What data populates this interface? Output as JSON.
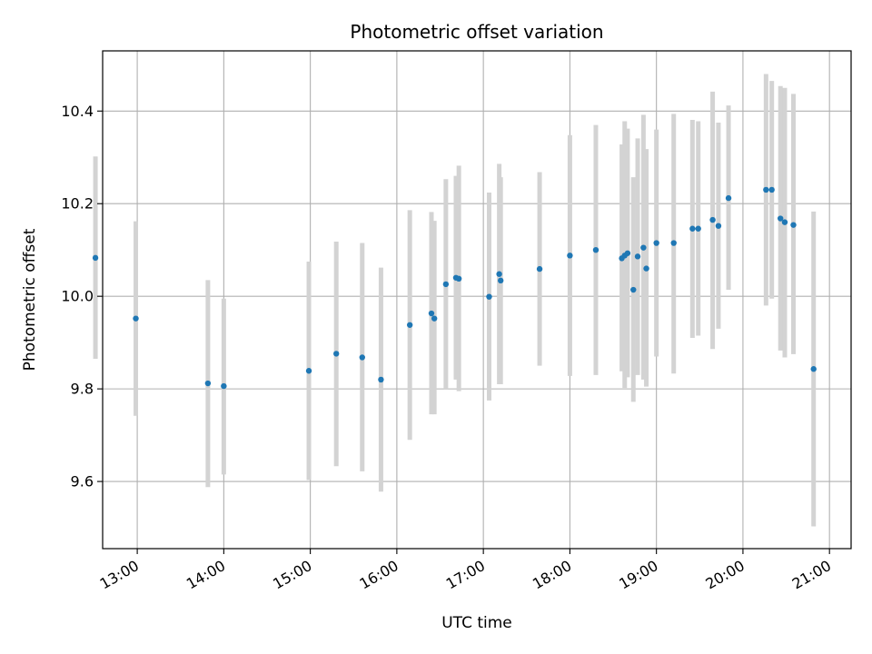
{
  "chart_data": {
    "type": "scatter",
    "title": "Photometric offset variation",
    "xlabel": "UTC time",
    "ylabel": "Photometric offset",
    "x_ticks": [
      "13:00",
      "14:00",
      "15:00",
      "16:00",
      "17:00",
      "18:00",
      "19:00",
      "20:00",
      "21:00"
    ],
    "y_ticks": [
      9.6,
      9.8,
      10.0,
      10.2,
      10.4
    ],
    "xlim": [
      "12:36",
      "21:15"
    ],
    "ylim": [
      9.455,
      10.53
    ],
    "grid": true,
    "colors": {
      "point": "#1f77b4",
      "errorbar": "#d3d3d3",
      "grid": "#b0b0b0"
    },
    "points": [
      {
        "t": "12:31",
        "y": 10.083,
        "lo": 9.865,
        "hi": 10.302
      },
      {
        "t": "12:59",
        "y": 9.952,
        "lo": 9.742,
        "hi": 10.162
      },
      {
        "t": "13:49",
        "y": 9.812,
        "lo": 9.588,
        "hi": 10.035
      },
      {
        "t": "14:00",
        "y": 9.806,
        "lo": 9.615,
        "hi": 9.995
      },
      {
        "t": "14:59",
        "y": 9.839,
        "lo": 9.603,
        "hi": 10.075
      },
      {
        "t": "15:18",
        "y": 9.876,
        "lo": 9.633,
        "hi": 10.118
      },
      {
        "t": "15:36",
        "y": 9.868,
        "lo": 9.622,
        "hi": 10.115
      },
      {
        "t": "15:49",
        "y": 9.82,
        "lo": 9.578,
        "hi": 10.062
      },
      {
        "t": "16:09",
        "y": 9.938,
        "lo": 9.69,
        "hi": 10.186
      },
      {
        "t": "16:24",
        "y": 9.963,
        "lo": 9.745,
        "hi": 10.182
      },
      {
        "t": "16:26",
        "y": 9.952,
        "lo": 9.745,
        "hi": 10.163
      },
      {
        "t": "16:34",
        "y": 10.026,
        "lo": 9.8,
        "hi": 10.253
      },
      {
        "t": "16:41",
        "y": 10.04,
        "lo": 9.82,
        "hi": 10.26
      },
      {
        "t": "16:43",
        "y": 10.038,
        "lo": 9.795,
        "hi": 10.282
      },
      {
        "t": "17:04",
        "y": 9.999,
        "lo": 9.775,
        "hi": 10.224
      },
      {
        "t": "17:11",
        "y": 10.048,
        "lo": 9.81,
        "hi": 10.286
      },
      {
        "t": "17:12",
        "y": 10.034,
        "lo": 9.81,
        "hi": 10.257
      },
      {
        "t": "17:39",
        "y": 10.059,
        "lo": 9.85,
        "hi": 10.268
      },
      {
        "t": "18:00",
        "y": 10.088,
        "lo": 9.828,
        "hi": 10.348
      },
      {
        "t": "18:18",
        "y": 10.1,
        "lo": 9.83,
        "hi": 10.37
      },
      {
        "t": "18:36",
        "y": 10.082,
        "lo": 9.838,
        "hi": 10.328
      },
      {
        "t": "18:38",
        "y": 10.088,
        "lo": 9.802,
        "hi": 10.378
      },
      {
        "t": "18:40",
        "y": 10.093,
        "lo": 9.825,
        "hi": 10.362
      },
      {
        "t": "18:44",
        "y": 10.014,
        "lo": 9.772,
        "hi": 10.257
      },
      {
        "t": "18:47",
        "y": 10.086,
        "lo": 9.83,
        "hi": 10.341
      },
      {
        "t": "18:51",
        "y": 10.105,
        "lo": 9.82,
        "hi": 10.392
      },
      {
        "t": "18:53",
        "y": 10.06,
        "lo": 9.805,
        "hi": 10.318
      },
      {
        "t": "19:00",
        "y": 10.115,
        "lo": 9.87,
        "hi": 10.36
      },
      {
        "t": "19:12",
        "y": 10.115,
        "lo": 9.833,
        "hi": 10.394
      },
      {
        "t": "19:25",
        "y": 10.146,
        "lo": 9.91,
        "hi": 10.381
      },
      {
        "t": "19:29",
        "y": 10.146,
        "lo": 9.915,
        "hi": 10.378
      },
      {
        "t": "19:39",
        "y": 10.165,
        "lo": 9.886,
        "hi": 10.442
      },
      {
        "t": "19:43",
        "y": 10.152,
        "lo": 9.93,
        "hi": 10.375
      },
      {
        "t": "19:50",
        "y": 10.212,
        "lo": 10.014,
        "hi": 10.412
      },
      {
        "t": "20:16",
        "y": 10.23,
        "lo": 9.98,
        "hi": 10.48
      },
      {
        "t": "20:20",
        "y": 10.23,
        "lo": 9.995,
        "hi": 10.465
      },
      {
        "t": "20:26",
        "y": 10.168,
        "lo": 9.883,
        "hi": 10.454
      },
      {
        "t": "20:29",
        "y": 10.16,
        "lo": 9.868,
        "hi": 10.45
      },
      {
        "t": "20:35",
        "y": 10.154,
        "lo": 9.875,
        "hi": 10.437
      },
      {
        "t": "20:49",
        "y": 9.843,
        "lo": 9.503,
        "hi": 10.183
      }
    ]
  }
}
